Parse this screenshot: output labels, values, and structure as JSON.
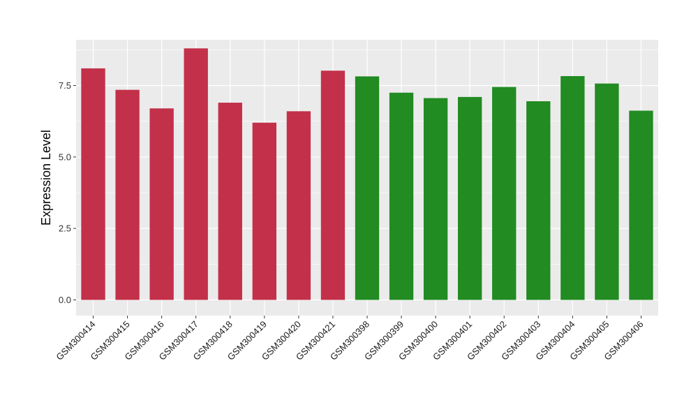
{
  "chart_data": {
    "type": "bar",
    "title": "",
    "xlabel": "",
    "ylabel": "Expression Level",
    "ylim": [
      -0.55,
      9.1
    ],
    "yticks": [
      0.0,
      2.5,
      5.0,
      7.5
    ],
    "ytick_labels": [
      "0.0",
      "2.5",
      "5.0",
      "7.5"
    ],
    "grid": true,
    "background": "#EBEBEB",
    "categories": [
      "GSM300414",
      "GSM300415",
      "GSM300416",
      "GSM300417",
      "GSM300418",
      "GSM300419",
      "GSM300420",
      "GSM300421",
      "GSM300398",
      "GSM300399",
      "GSM300400",
      "GSM300401",
      "GSM300402",
      "GSM300403",
      "GSM300404",
      "GSM300405",
      "GSM300406"
    ],
    "values": [
      8.1,
      7.35,
      6.7,
      8.8,
      6.9,
      6.2,
      6.6,
      8.02,
      7.82,
      7.25,
      7.06,
      7.1,
      7.45,
      6.95,
      7.83,
      7.57,
      6.62
    ],
    "colors": [
      "#C3304A",
      "#C3304A",
      "#C3304A",
      "#C3304A",
      "#C3304A",
      "#C3304A",
      "#C3304A",
      "#C3304A",
      "#228B22",
      "#228B22",
      "#228B22",
      "#228B22",
      "#228B22",
      "#228B22",
      "#228B22",
      "#228B22",
      "#228B22"
    ]
  }
}
